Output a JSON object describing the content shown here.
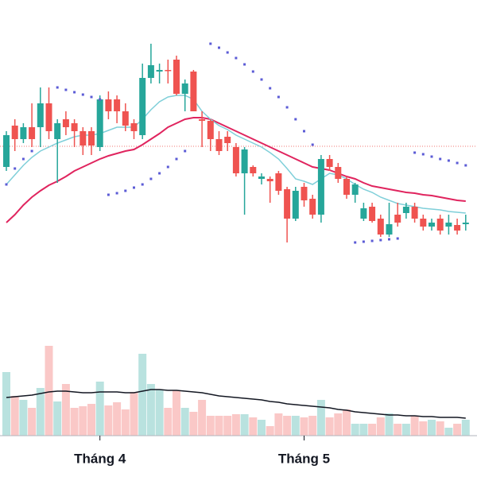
{
  "chart_data": {
    "type": "candlestick",
    "categories": [
      null,
      null,
      null,
      null,
      null,
      null,
      null,
      null,
      null,
      null,
      null,
      "Tháng 4",
      null,
      null,
      null,
      null,
      null,
      null,
      null,
      null,
      null,
      null,
      null,
      null,
      null,
      null,
      null,
      null,
      null,
      null,
      null,
      null,
      null,
      null,
      null,
      "Tháng 5",
      null,
      null,
      null,
      null,
      null,
      null,
      null,
      null,
      null,
      null,
      null,
      null,
      null,
      null,
      null,
      null,
      null,
      null,
      null
    ],
    "open": [
      120,
      172,
      155,
      170,
      170,
      200,
      155,
      180,
      175,
      165,
      165,
      145,
      205,
      205,
      190,
      175,
      160,
      232,
      240,
      242,
      255,
      212,
      240,
      180,
      178,
      155,
      158,
      145,
      112,
      120,
      105,
      105,
      112,
      92,
      55,
      95,
      80,
      60,
      130,
      120,
      105,
      85,
      55,
      70,
      55,
      35,
      60,
      62,
      70,
      55,
      45,
      55,
      45,
      47,
      48
    ],
    "close": [
      160,
      155,
      170,
      155,
      200,
      165,
      175,
      170,
      165,
      147,
      147,
      205,
      190,
      190,
      172,
      165,
      232,
      248,
      242,
      241,
      212,
      225,
      190,
      178,
      155,
      140,
      150,
      112,
      142,
      112,
      108,
      102,
      90,
      55,
      90,
      78,
      60,
      130,
      120,
      105,
      85,
      98,
      68,
      52,
      35,
      48,
      50,
      70,
      55,
      45,
      50,
      40,
      50,
      40,
      50
    ],
    "high": [
      165,
      180,
      175,
      200,
      220,
      220,
      180,
      190,
      180,
      170,
      170,
      210,
      215,
      210,
      200,
      180,
      250,
      275,
      250,
      255,
      260,
      230,
      242,
      190,
      180,
      165,
      165,
      150,
      145,
      122,
      112,
      108,
      115,
      95,
      95,
      100,
      85,
      135,
      135,
      125,
      108,
      100,
      75,
      75,
      60,
      75,
      75,
      75,
      75,
      60,
      55,
      60,
      60,
      55,
      60
    ],
    "low": [
      115,
      140,
      150,
      145,
      145,
      155,
      100,
      160,
      145,
      135,
      135,
      140,
      180,
      175,
      165,
      155,
      155,
      225,
      225,
      225,
      210,
      190,
      190,
      145,
      140,
      135,
      140,
      108,
      60,
      108,
      98,
      75,
      85,
      25,
      52,
      70,
      55,
      50,
      115,
      100,
      80,
      75,
      52,
      50,
      32,
      32,
      45,
      55,
      50,
      40,
      40,
      35,
      35,
      35,
      40
    ],
    "up_color": "#26a69a",
    "down_color": "#ef5350",
    "ylim": [
      0,
      330
    ],
    "ma_fast": {
      "color": "#7fcfd9",
      "values": [
        98,
        110,
        122,
        132,
        140,
        145,
        150,
        154,
        158,
        160,
        160,
        162,
        166,
        170,
        170,
        170,
        180,
        192,
        202,
        208,
        210,
        210,
        205,
        190,
        180,
        172,
        167,
        160,
        155,
        150,
        145,
        138,
        130,
        118,
        105,
        102,
        98,
        105,
        112,
        110,
        105,
        98,
        92,
        88,
        82,
        78,
        74,
        72,
        70,
        68,
        67,
        66,
        64,
        63,
        62
      ]
    },
    "ma_slow": {
      "color": "#e0245e",
      "values": [
        50,
        60,
        72,
        82,
        90,
        97,
        102,
        108,
        115,
        120,
        125,
        130,
        134,
        137,
        140,
        142,
        148,
        155,
        162,
        170,
        175,
        180,
        182,
        182,
        180,
        175,
        170,
        165,
        160,
        155,
        150,
        145,
        140,
        135,
        130,
        125,
        120,
        118,
        116,
        112,
        108,
        105,
        100,
        96,
        94,
        92,
        90,
        88,
        87,
        85,
        84,
        82,
        80,
        78,
        77
      ]
    },
    "sar": {
      "color": "#5b5bd6",
      "values": [
        98,
        118,
        130,
        140,
        null,
        null,
        220,
        217,
        214,
        211,
        208,
        205,
        85,
        87,
        90,
        94,
        98,
        105,
        112,
        120,
        130,
        140,
        null,
        null,
        275,
        270,
        264,
        257,
        249,
        240,
        230,
        219,
        208,
        195,
        180,
        165,
        148,
        null,
        null,
        null,
        null,
        25,
        26,
        27,
        28,
        29,
        30,
        null,
        138,
        136,
        133,
        130,
        128,
        125,
        122
      ]
    },
    "price_line": {
      "color": "#ef5350",
      "value": 146
    },
    "volume": {
      "values": [
        80,
        50,
        45,
        35,
        60,
        113,
        43,
        65,
        35,
        37,
        40,
        68,
        38,
        42,
        33,
        55,
        103,
        65,
        58,
        35,
        57,
        35,
        30,
        45,
        25,
        25,
        25,
        27,
        27,
        23,
        20,
        12,
        28,
        25,
        25,
        23,
        25,
        45,
        23,
        28,
        33,
        15,
        15,
        15,
        23,
        28,
        15,
        15,
        25,
        18,
        20,
        18,
        10,
        15,
        20
      ],
      "ylim": [
        0,
        120
      ]
    },
    "volume_ma": {
      "color": "#131722",
      "values": [
        48,
        49,
        50,
        51,
        53,
        55,
        56,
        56,
        55,
        54,
        54,
        55,
        55,
        55,
        54,
        54,
        56,
        58,
        58,
        57,
        57,
        56,
        55,
        54,
        52,
        50,
        49,
        48,
        47,
        46,
        45,
        43,
        42,
        40,
        39,
        38,
        37,
        36,
        35,
        33,
        32,
        30,
        29,
        28,
        27,
        26,
        26,
        25,
        25,
        24,
        24,
        23,
        23,
        23,
        22
      ]
    }
  }
}
